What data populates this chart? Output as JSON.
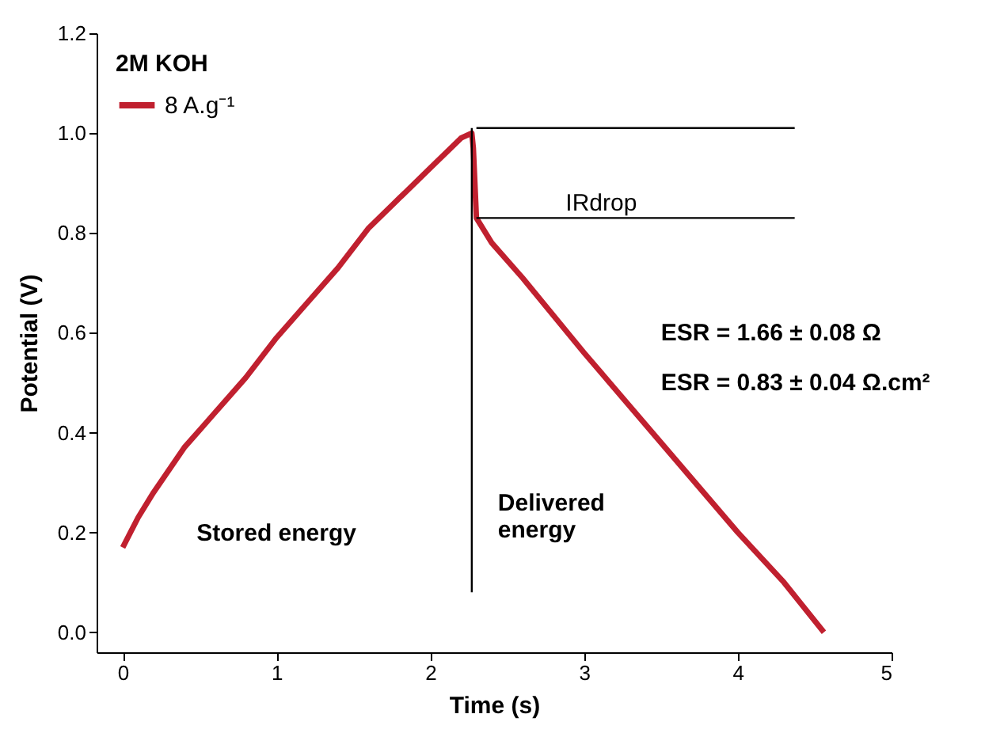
{
  "chart_data": {
    "type": "line",
    "xlabel": "Time (s)",
    "ylabel": "Potential (V)",
    "legend_title": "2M KOH",
    "legend": "top left",
    "grid": false,
    "marker": "none",
    "line_style": "solid",
    "xlim": [
      -0.17,
      5
    ],
    "xticks": [
      0,
      1,
      2,
      3,
      4,
      5
    ],
    "ylim": [
      -0.04,
      1.2
    ],
    "yticks": [
      {
        "value": 0,
        "label": "0.0"
      },
      {
        "value": 0.2,
        "label": "0.2"
      },
      {
        "value": 0.4,
        "label": "0.4"
      },
      {
        "value": 0.6,
        "label": "0.6"
      },
      {
        "value": 0.8,
        "label": "0.8"
      },
      {
        "value": 1.0,
        "label": "1.0"
      },
      {
        "value": 1.2,
        "label": "1.2"
      }
    ],
    "series": [
      {
        "name": "8 A.g⁻¹",
        "color": "#c0202f",
        "x": [
          0,
          0.05,
          0.1,
          0.2,
          0.4,
          0.6,
          0.8,
          1.0,
          1.2,
          1.4,
          1.6,
          1.8,
          2.0,
          2.2,
          2.27,
          2.28,
          2.3,
          2.4,
          2.6,
          3.0,
          3.5,
          4.0,
          4.3,
          4.56
        ],
        "values": [
          0.17,
          0.2,
          0.23,
          0.28,
          0.37,
          0.44,
          0.51,
          0.59,
          0.66,
          0.73,
          0.81,
          0.87,
          0.93,
          0.99,
          1.0,
          0.97,
          0.83,
          0.78,
          0.71,
          0.56,
          0.38,
          0.2,
          0.1,
          0.0
        ]
      },
      {
        "color": "#000000",
        "x": [
          2.3,
          4.37
        ],
        "values": [
          1.01,
          1.01
        ]
      },
      {
        "color": "#000000",
        "x": [
          2.3,
          4.37
        ],
        "values": [
          0.83,
          0.83
        ]
      },
      {
        "color": "#000000",
        "x": [
          2.27,
          2.27
        ],
        "values": [
          0.08,
          1.01
        ]
      }
    ],
    "annotations": [
      "IRdrop",
      "ESR = 1.66 ± 0.08 Ω",
      "ESR = 0.83 ± 0.04 Ω.cm²",
      "Stored energy",
      "Delivered\nenergy"
    ]
  }
}
